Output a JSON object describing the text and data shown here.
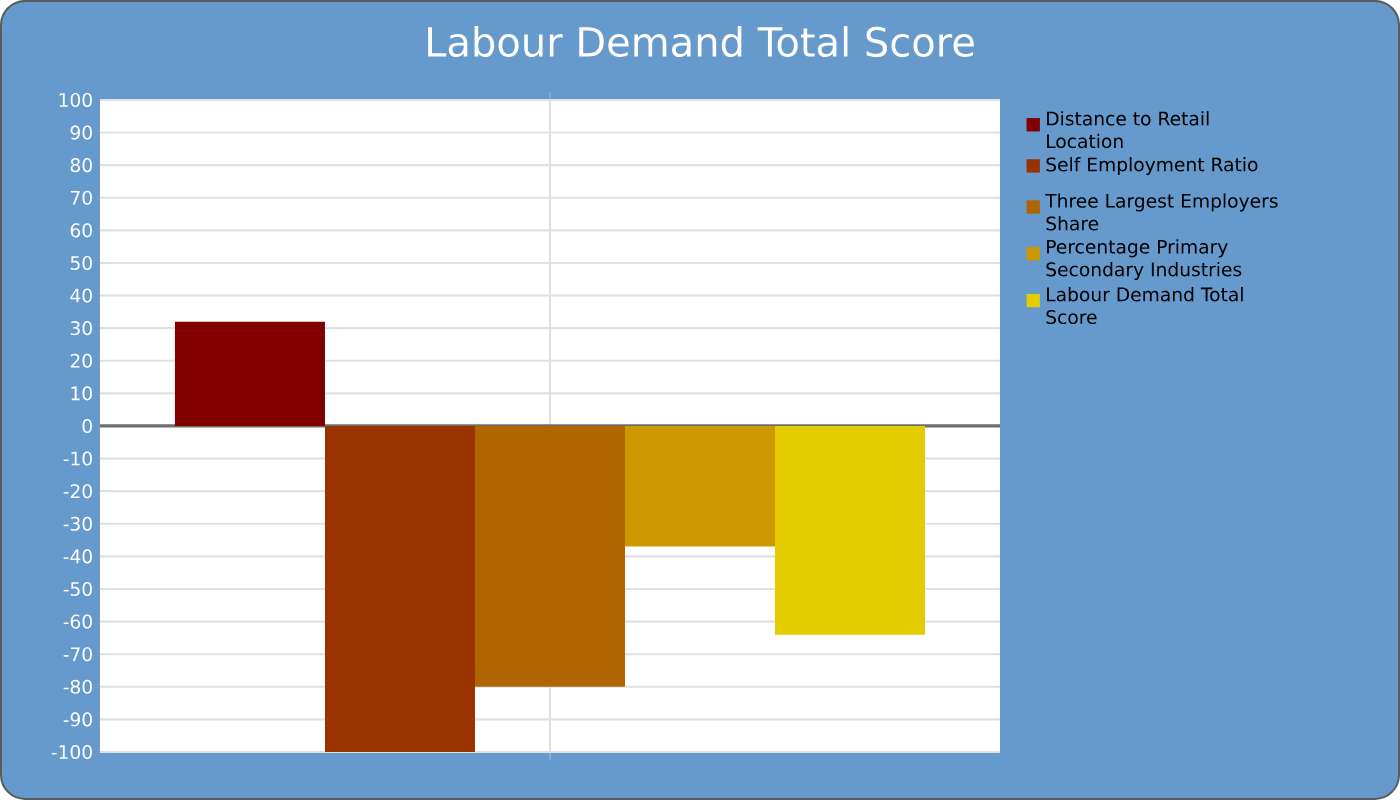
{
  "chart_data": {
    "type": "bar",
    "title": "Labour Demand Total Score",
    "categories": [
      null
    ],
    "series": [
      {
        "name": "Distance to Retail Location",
        "color": "#800000",
        "values": [
          32
        ]
      },
      {
        "name": "Self Employment Ratio",
        "color": "#993300",
        "values": [
          -100
        ]
      },
      {
        "name": "Three Largest Employers Share",
        "color": "#b06600",
        "values": [
          -80
        ]
      },
      {
        "name": "Percentage Primary Secondary Industries",
        "color": "#cc9900",
        "values": [
          -37
        ]
      },
      {
        "name": "Labour Demand Total Score",
        "color": "#e3cc00",
        "values": [
          -64
        ]
      }
    ],
    "ylim": [
      -100,
      100
    ],
    "yticks": [
      -100,
      -90,
      -80,
      -70,
      -60,
      -50,
      -40,
      -30,
      -20,
      -10,
      0,
      10,
      20,
      30,
      40,
      50,
      60,
      70,
      80,
      90,
      100
    ],
    "grid": true,
    "legend": "right"
  }
}
